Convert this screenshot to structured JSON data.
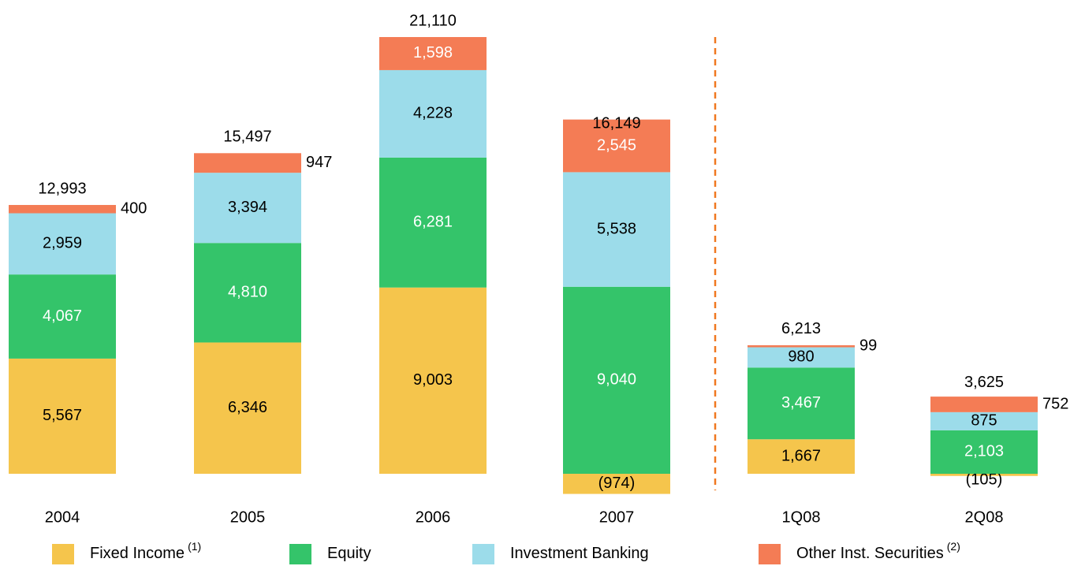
{
  "chart_data": {
    "type": "stacked_bar",
    "categories": [
      "2004",
      "2005",
      "2006",
      "2007",
      "1Q08",
      "2Q08"
    ],
    "series": [
      {
        "name": "Fixed Income",
        "note": "(1)",
        "color": "#f5c54c",
        "values": [
          5567,
          6346,
          9003,
          -974,
          1667,
          -105
        ],
        "value_labels": [
          "5,567",
          "6,346",
          "9,003",
          "(974)",
          "1,667",
          "(105)"
        ]
      },
      {
        "name": "Equity",
        "color": "#34c46a",
        "values": [
          4067,
          4810,
          6281,
          9040,
          3467,
          2103
        ],
        "value_labels": [
          "4,067",
          "4,810",
          "6,281",
          "9,040",
          "3,467",
          "2,103"
        ]
      },
      {
        "name": "Investment Banking",
        "color": "#9cdcea",
        "values": [
          2959,
          3394,
          4228,
          5538,
          980,
          875
        ],
        "value_labels": [
          "2,959",
          "3,394",
          "4,228",
          "5,538",
          "980",
          "875"
        ]
      },
      {
        "name": "Other Inst. Securities",
        "note": "(2)",
        "color": "#f47c55",
        "values": [
          400,
          947,
          1598,
          2545,
          99,
          752
        ],
        "value_labels": [
          "400",
          "947",
          "1,598",
          "2,545",
          "99",
          "752"
        ]
      }
    ],
    "totals": [
      12993,
      15497,
      21110,
      16149,
      6213,
      3625
    ],
    "total_labels": [
      "12,993",
      "15,497",
      "21,110",
      "16,149",
      "6,213",
      "3,625"
    ]
  }
}
